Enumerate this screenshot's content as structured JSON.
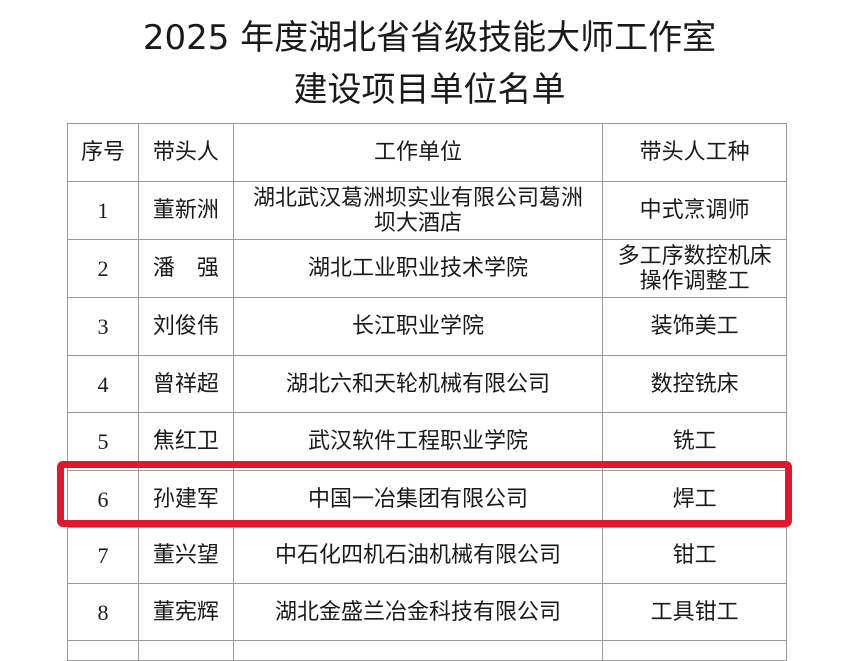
{
  "title": {
    "line1": "2025 年度湖北省省级技能大师工作室",
    "line2": "建设项目单位名单"
  },
  "table": {
    "headers": [
      "序号",
      "带头人",
      "工作单位",
      "带头人工种"
    ],
    "rows": [
      {
        "no": "1",
        "leader": "董新洲",
        "unit": "湖北武汉葛洲坝实业有限公司葛洲坝大酒店",
        "trade": "中式烹调师"
      },
      {
        "no": "2",
        "leader": "潘　强",
        "unit": "湖北工业职业技术学院",
        "trade": "多工序数控机床操作调整工"
      },
      {
        "no": "3",
        "leader": "刘俊伟",
        "unit": "长江职业学院",
        "trade": "装饰美工"
      },
      {
        "no": "4",
        "leader": "曾祥超",
        "unit": "湖北六和天轮机械有限公司",
        "trade": "数控铣床"
      },
      {
        "no": "5",
        "leader": "焦红卫",
        "unit": "武汉软件工程职业学院",
        "trade": "铣工"
      },
      {
        "no": "6",
        "leader": "孙建军",
        "unit": "中国一冶集团有限公司",
        "trade": "焊工"
      },
      {
        "no": "7",
        "leader": "董兴望",
        "unit": "中石化四机石油机械有限公司",
        "trade": "钳工"
      },
      {
        "no": "8",
        "leader": "董宪辉",
        "unit": "湖北金盛兰冶金科技有限公司",
        "trade": "工具钳工"
      }
    ]
  },
  "highlight_color": "#e0182d"
}
